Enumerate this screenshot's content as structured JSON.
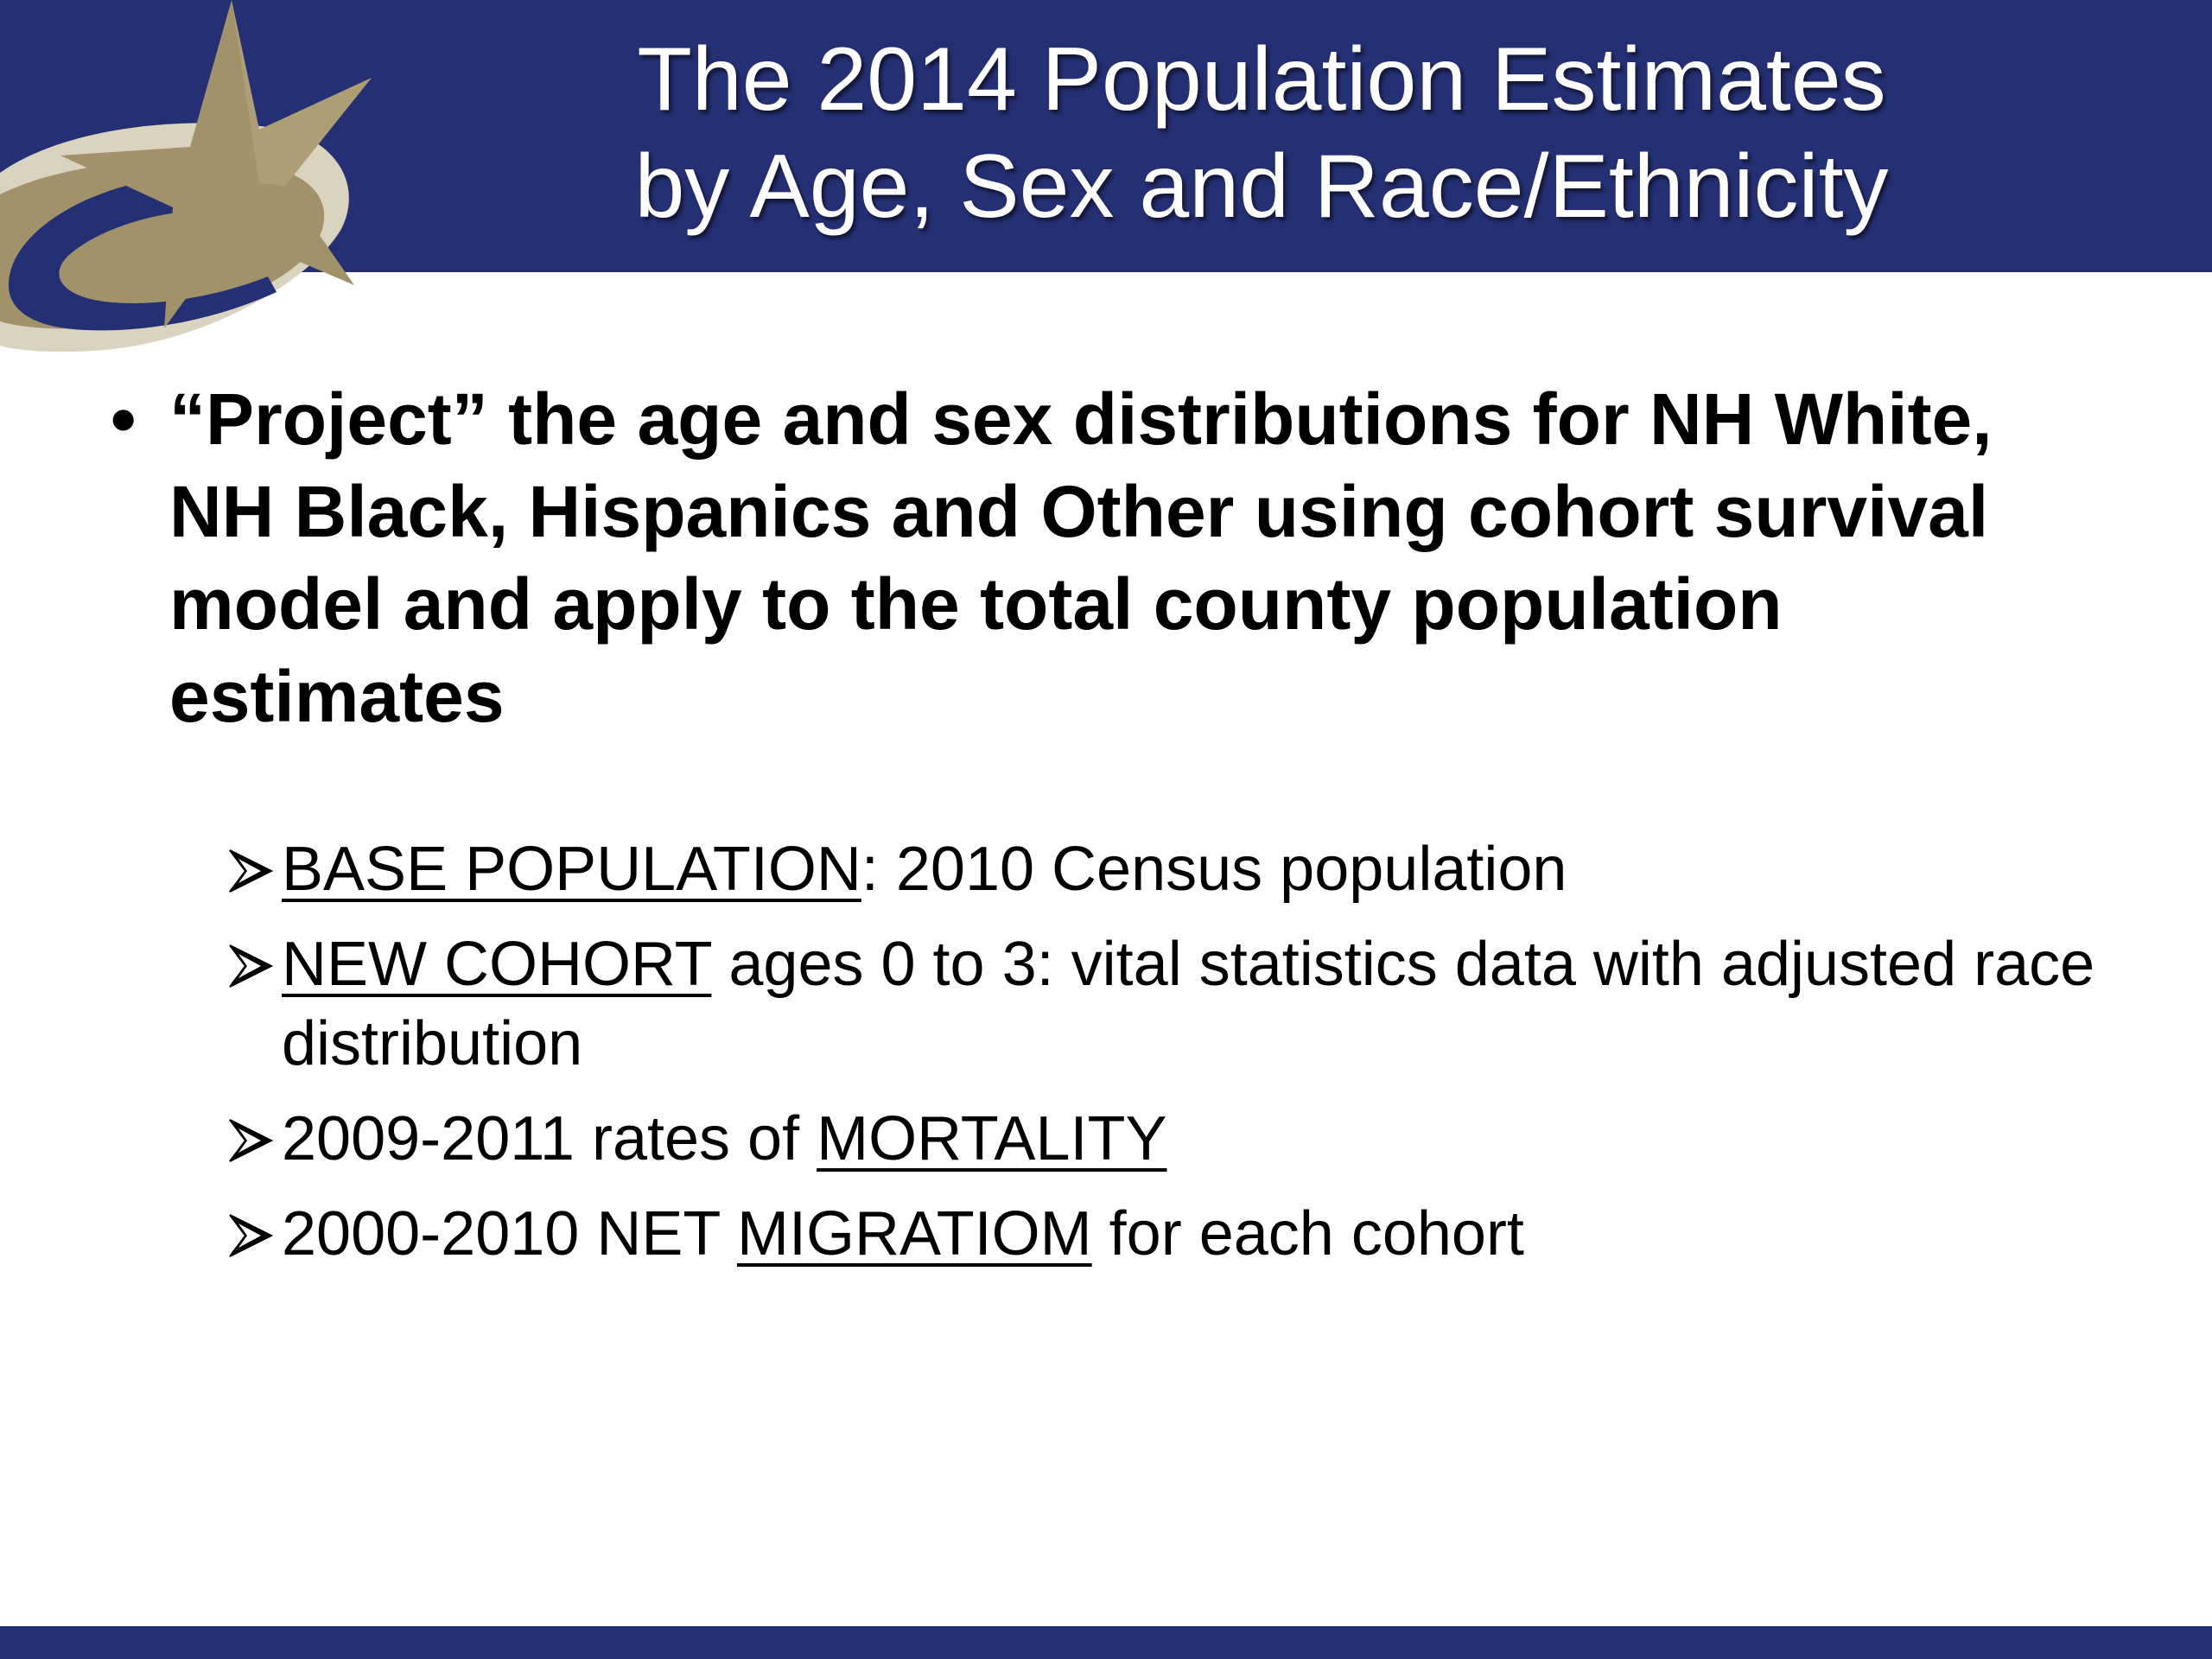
{
  "title": {
    "line1": "The 2014 Population Estimates",
    "line2": "by Age, Sex and Race/Ethnicity"
  },
  "colors": {
    "navy": "#253074",
    "gold": "#A2926A",
    "silver": "#D9D3BF"
  },
  "logo_icon": "star-swoosh-logo",
  "main_bullet": {
    "marker": "•",
    "text": "“Project” the age and sex distributions for NH White, NH Black, Hispanics and Other using cohort survival model and apply to the total county population estimates"
  },
  "sub_bullets": [
    {
      "underlined": "BASE POPULATION",
      "after": ": 2010 Census population"
    },
    {
      "underlined": "NEW COHORT",
      "after": " ages 0 to 3: vital statistics data with adjusted race distribution"
    },
    {
      "before": "2009-2011 rates of ",
      "underlined": "MORTALITY"
    },
    {
      "before": "2000-2010 NET ",
      "underlined": "MIGRATIOM",
      "after": " for each cohort"
    }
  ]
}
